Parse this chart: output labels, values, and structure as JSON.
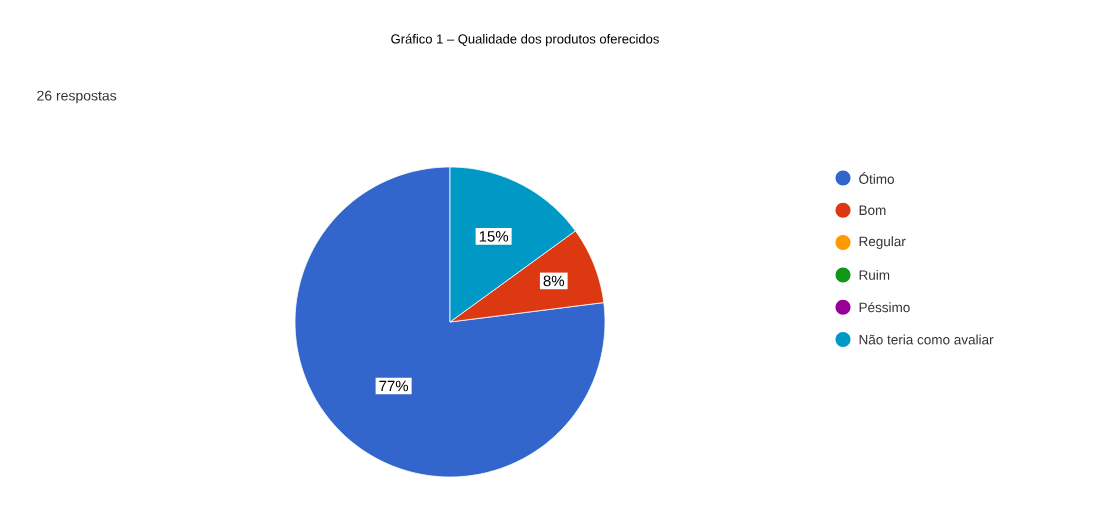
{
  "chart_data": {
    "type": "pie",
    "title": "Gráfico 1 – Qualidade dos produtos oferecidos",
    "subtitle": "26 respostas",
    "categories": [
      "Ótimo",
      "Bom",
      "Regular",
      "Ruim",
      "Péssimo",
      "Não teria como avaliar"
    ],
    "values": [
      77,
      8,
      0,
      0,
      0,
      15
    ],
    "colors": [
      "#3366cc",
      "#dc3912",
      "#ff9900",
      "#109618",
      "#990099",
      "#0099c6"
    ],
    "value_labels": [
      "77%",
      "8%",
      null,
      null,
      null,
      "15%"
    ],
    "legend": "right"
  }
}
